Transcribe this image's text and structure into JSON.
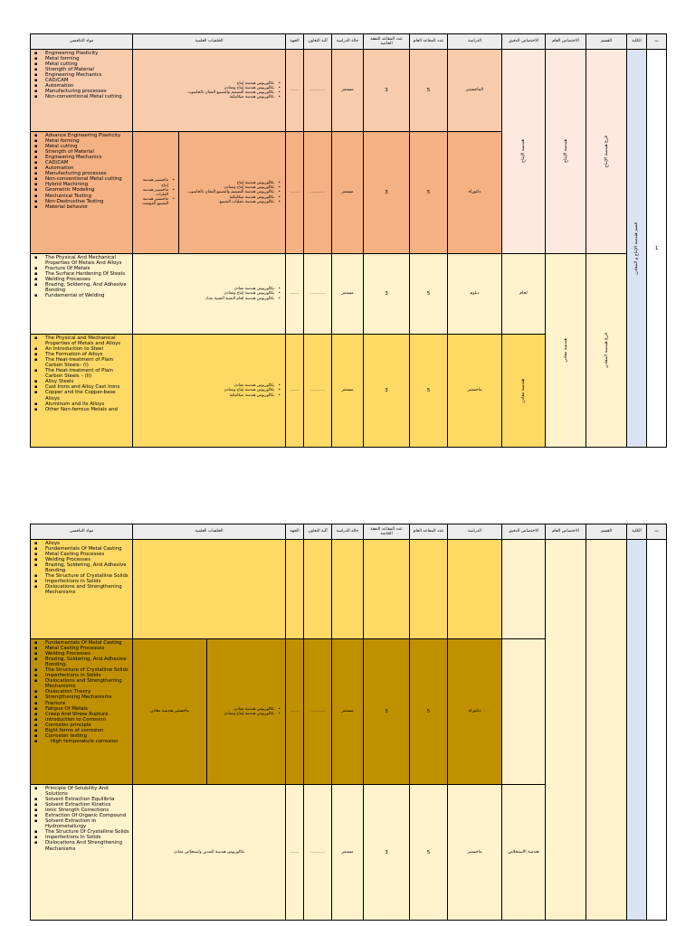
{
  "colors": {
    "prod_ms": "#f8cbad",
    "prod_phd": "#f4b183",
    "prod_col": "#fde9de",
    "met_dip": "#fff2cc",
    "met_ms": "#ffd966",
    "met_phd": "#bf9000",
    "met_col": "#fff2cc",
    "college": "#dae3f3",
    "header": "#ececec"
  },
  "headers": {
    "t": "ت",
    "college": "الكلية",
    "dept": "القسم",
    "general": "الاختصاص العام",
    "precise": "الاختصاص الدقيق",
    "study": "الدراسة",
    "seats_general": "عدد المقاعد العام",
    "seats_private": "عدد المقاعد النفقة الخاصة",
    "status": "حالة الدراسة",
    "coop": "آلية التعاون",
    "entity": "الجهة",
    "backgrounds": "الخلفيات العلمية",
    "subjects": "مواد التنافسي"
  },
  "table1": {
    "row_number": "1",
    "college": "قسم هندسة الإنتاج و المعادن",
    "dept_production": "فرع هندسة الإنتاج",
    "dept_metallurgy": "فرع هندسة المعادن",
    "general_production": "هندسة الإنتاج",
    "general_metallurgy": "هندسة معادن",
    "precise_production": "هندسة الإنتاج",
    "precise_metallurgy_ms": "هندسة معادن",
    "rows": [
      {
        "study": "الماجستير",
        "seats_general": "5",
        "seats_private": "3",
        "status": "مستمر",
        "coop": "...........",
        "entity": ".......",
        "backgrounds": [
          "بكالوريوس هندسة إنتاج",
          "بكالوريوس هندسة إنتاج ومعادن",
          "بكالوريوس هندسة التصميم والتصنيع المعان بالحاسوب",
          "بكالوريوس هندسة ميكانيكية"
        ],
        "subjects": [
          "Engineering Plasticity",
          "Metal forming",
          "Metal cutting",
          "Strength of Material",
          "Engineering Mechanics",
          "CAD/CAM",
          "Automation",
          "Manufacturing processes",
          "Non-conventional Metal cutting"
        ]
      },
      {
        "study": "دكتوراه",
        "seats_general": "5",
        "seats_private": "3",
        "status": "مستمر",
        "coop": "...........",
        "entity": ".......",
        "masters": [
          "ماجستير هندسة إنتاج",
          "ماجستير هندسة الفلزات",
          "ماجستير هندسة التصنيع المؤتمت"
        ],
        "backgrounds": [
          "بكالوريوس هندسة إنتاج",
          "بكالوريوس هندسة إنتاج ومعادن",
          "بكالوريوس هندسة التصميم والتصنيع المعان بالحاسوب",
          "بكالوريوس هندسة ميكانيكية",
          "بكالوريوس هندسة عمليات التصنيع"
        ],
        "subjects": [
          "Advance Engineering Plasticity",
          "Metal forming",
          "Metal cutting",
          "Strength of Material",
          "Engineering Mechanics",
          "CAD/CAM",
          "Automation",
          "Manufacturing processes",
          "Non-conventional Metal cutting",
          "Hybrid Machining",
          "Geometric Modeling",
          "Mechanical Testing",
          "Non-Destructive Testing",
          "Material behavior"
        ]
      },
      {
        "precise": "لحام",
        "study": "دبلوم",
        "seats_general": "5",
        "seats_private": "3",
        "status": "مستمر",
        "coop": "...........",
        "entity": ".......",
        "backgrounds": [
          "بكالوريوس هندسة معادن",
          "بكالوريوس هندسة إنتاج ومعادن",
          "بكالوريوس هندسة لحام التقنية التقنية بغداد"
        ],
        "subjects": [
          "The Physical And Mechanical Properties Of Metals And Alloys",
          "Fracture Of Metals",
          "The Surface Hardening Of Steels",
          "Welding Processes",
          "Brazing, Soldering, And Adhesive Bonding",
          "Fundamental of Welding"
        ]
      },
      {
        "study": "ماجستير",
        "seats_general": "5",
        "seats_private": "3",
        "status": "مستمر",
        "coop": "...........",
        "entity": ".......",
        "backgrounds": [
          "بكالوريوس هندسة معادن",
          "بكالوريوس هندسة إنتاج ومعادن",
          "بكالوريوس هندسة ميكانيكية"
        ],
        "subjects": [
          "The Physical and Mechanical Properties of Metals and Alloys",
          "An Introduction to Steel",
          "The Formation of Alloys",
          "The Heat-treatment of Plain Carbon Steels– (I)",
          "The Heat-treatment of Plain Carbon Steels – (II)",
          "Alloy Steels",
          "Cast Irons and Alloy Cast Irons",
          "Copper and the Copper-base Alloys",
          "Aluminum and Its Alloys",
          "Other Non-ferrous Metals and"
        ]
      }
    ]
  },
  "table2": {
    "rows": [
      {
        "subjects": [
          "Alloys",
          "Fundamentals Of Metal Casting",
          "Metal Casting Processes",
          "Welding Processes",
          "Brazing, Soldering, And Adhesive Bonding",
          "The Structure of Crystalline Solids",
          "Imperfections in Solids",
          "Dislocations and Strengthening Mechanisms"
        ]
      },
      {
        "study": "دكتوراه",
        "seats_general": "5",
        "seats_private": "3",
        "status": "مستمر",
        "coop": "...........",
        "entity": ".......",
        "masters_text": "ماجستير هندسة معادن",
        "backgrounds": [
          "بكالوريوس هندسة معادن",
          "بكالوريوس هندسة إنتاج ومعادن"
        ],
        "subjects": [
          "Fundamentals Of Metal Casting",
          "Metal Casting Processes",
          "Welding Processes",
          "Brazing, Soldering, And Adhesive Bonding.",
          "The Structure of Crystalline Solids",
          "Imperfections in Solids",
          "Dislocations and Strengthening Mechanisms",
          "Dislocation Theory",
          "Strengthening Mechanisms",
          "Fracture",
          "Fatigue Of Metals",
          "Creep And Stress Rupture",
          "introduction to Corrosion",
          "Corrosion principle",
          "Eight forms of corrosion",
          "Corrosion testing"
        ],
        "sub_item": "High temperature corrosion"
      },
      {
        "precise": "هندسة الاستخلاص",
        "study": "ماجستير",
        "seats_general": "5",
        "seats_private": "3",
        "status": "مستمر",
        "coop": "...........",
        "entity": ".......",
        "backgrounds": [
          "بكالوريوس هندسة التعدين واستخلاص معادن"
        ],
        "subjects": [
          "Principle Of Solubility And Solutions",
          "Solvent Extraction Equilibria",
          "Solvent Extraction Kinetics",
          "Ionic Strength Corrections",
          "Extraction Of Organic Compound",
          "Solvent Extraction In Hydrometallurgy",
          "The Structure Of Crystalline Solids",
          "Imperfections In Solids",
          "Dislocations And Strengthening Mechanisms"
        ]
      }
    ]
  }
}
